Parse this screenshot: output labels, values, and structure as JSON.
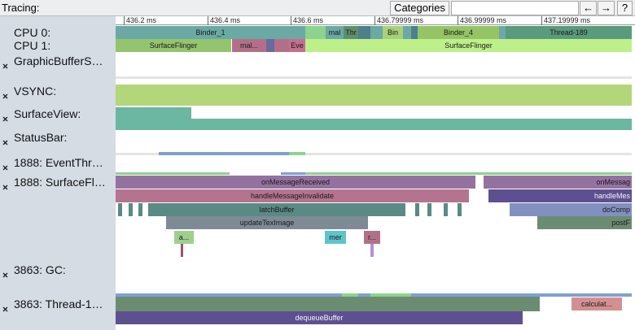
{
  "header": {
    "title": "Tracing:",
    "categories_button": "Categories",
    "buttons": [
      "←",
      "→",
      "?"
    ]
  },
  "ruler": {
    "ticks": [
      "436.2 ms",
      "436.4 ms",
      "436.6 ms",
      "436.79999 ms",
      "436.99999 ms",
      "437.19999 ms"
    ]
  },
  "tracks": [
    {
      "label": "CPU 0:",
      "slices": [
        "Binder_1",
        "mal",
        "Thr",
        "Bin",
        "Binder_4",
        "Thread-189"
      ]
    },
    {
      "label": "CPU 1:",
      "slices": [
        "SurfaceFlinger",
        "mal...",
        "Eve",
        "SurfaceFlinger"
      ]
    },
    {
      "label": "GraphicBufferS…"
    },
    {
      "label": "VSYNC:"
    },
    {
      "label": "SurfaceView:"
    },
    {
      "label": "StatusBar:"
    },
    {
      "label": "1888: EventThr…"
    },
    {
      "label": "1888: SurfaceFl…",
      "slices": [
        "onMessageReceived",
        "onMessag",
        "handleMessageInvalidate",
        "handleMes",
        "latchBuffer",
        "doComp",
        "updateTexImage",
        "postF",
        "a...",
        "mer",
        "r..."
      ]
    },
    {
      "label": "3863: GC:"
    },
    {
      "label": "3863: Thread-1…",
      "slices": [
        "calculat...",
        "dequeueBuffer"
      ]
    }
  ]
}
